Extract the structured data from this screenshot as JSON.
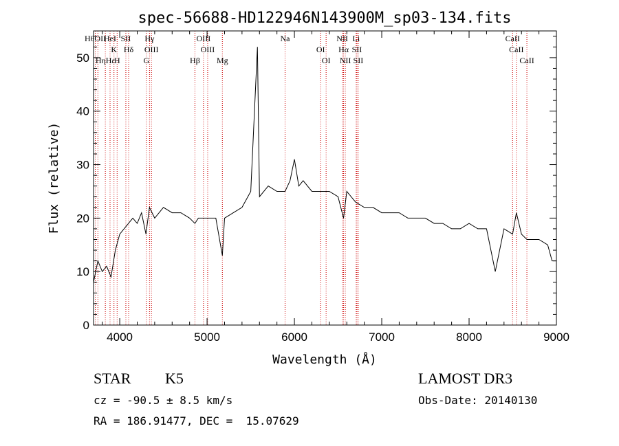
{
  "chart_data": {
    "type": "line",
    "title": "spec-56688-HD122946N143900M_sp03-134.fits",
    "xlabel": "Wavelength (Å)",
    "ylabel": "Flux (relative)",
    "xlim": [
      3700,
      9000
    ],
    "ylim": [
      0,
      55
    ],
    "x_ticks": [
      4000,
      5000,
      6000,
      7000,
      8000,
      9000
    ],
    "x_tick_labels": [
      "4000",
      "5000",
      "6000",
      "7000",
      "8000",
      "9000"
    ],
    "y_ticks": [
      0,
      10,
      20,
      30,
      40,
      50
    ],
    "y_tick_labels": [
      "0",
      "10",
      "20",
      "30",
      "40",
      "50"
    ],
    "grid": false,
    "line_color": "#000000",
    "marker_color": "#cc0000",
    "series": [
      {
        "x": [
          3700,
          3750,
          3800,
          3850,
          3900,
          3950,
          4000,
          4050,
          4100,
          4150,
          4200,
          4250,
          4300,
          4340,
          4400,
          4500,
          4600,
          4700,
          4800,
          4861,
          4900,
          5000,
          5100,
          5175,
          5200,
          5300,
          5400,
          5500,
          5577,
          5600,
          5700,
          5800,
          5893,
          5950,
          6000,
          6050,
          6100,
          6200,
          6300,
          6400,
          6500,
          6563,
          6600,
          6700,
          6800,
          6900,
          7000,
          7100,
          7200,
          7300,
          7400,
          7500,
          7600,
          7700,
          7800,
          7900,
          8000,
          8100,
          8200,
          8300,
          8400,
          8498,
          8542,
          8600,
          8662,
          8700,
          8800,
          8900,
          8950,
          9000
        ],
        "y": [
          8,
          12,
          10,
          11,
          9,
          14,
          17,
          18,
          19,
          20,
          19,
          21,
          17,
          22,
          20,
          22,
          21,
          21,
          20,
          19,
          20,
          20,
          20,
          13,
          20,
          21,
          22,
          25,
          52,
          24,
          26,
          25,
          25,
          27,
          31,
          26,
          27,
          25,
          25,
          25,
          24,
          20,
          25,
          23,
          22,
          22,
          21,
          21,
          21,
          20,
          20,
          20,
          19,
          19,
          18,
          18,
          19,
          18,
          18,
          10,
          18,
          17,
          21,
          17,
          16,
          16,
          16,
          15,
          12,
          12
        ]
      }
    ],
    "line_markers": [
      {
        "x": 3720,
        "label": "HθOII"
      },
      {
        "x": 3750,
        "label": ""
      },
      {
        "x": 3835,
        "label": "HηHε"
      },
      {
        "x": 3889,
        "label": "HeI"
      },
      {
        "x": 3934,
        "label": "K"
      },
      {
        "x": 3970,
        "label": "H"
      },
      {
        "x": 4070,
        "label": "SII"
      },
      {
        "x": 4102,
        "label": "Hδ"
      },
      {
        "x": 4305,
        "label": "G"
      },
      {
        "x": 4341,
        "label": "Hγ"
      },
      {
        "x": 4363,
        "label": "OIII"
      },
      {
        "x": 4861,
        "label": "Hβ"
      },
      {
        "x": 4959,
        "label": "OIII"
      },
      {
        "x": 5007,
        "label": "OIII"
      },
      {
        "x": 5175,
        "label": "Mg"
      },
      {
        "x": 5893,
        "label": "Na"
      },
      {
        "x": 6300,
        "label": "OI"
      },
      {
        "x": 6363,
        "label": "OI"
      },
      {
        "x": 6548,
        "label": "NII"
      },
      {
        "x": 6563,
        "label": "Hα"
      },
      {
        "x": 6583,
        "label": "NII"
      },
      {
        "x": 6707,
        "label": "Li"
      },
      {
        "x": 6716,
        "label": "SII"
      },
      {
        "x": 6731,
        "label": "SII"
      },
      {
        "x": 8498,
        "label": "CaII"
      },
      {
        "x": 8542,
        "label": "CaII"
      },
      {
        "x": 8662,
        "label": "CaII"
      }
    ]
  },
  "info": {
    "class_label": "STAR",
    "subclass_label": "K5",
    "survey_label": "LAMOST DR3",
    "cz_text": "cz = -90.5 ± 8.5 km/s",
    "obs_date_text": "Obs-Date: 20140130",
    "radec_text": "RA = 186.91477, DEC =  15.07629"
  }
}
